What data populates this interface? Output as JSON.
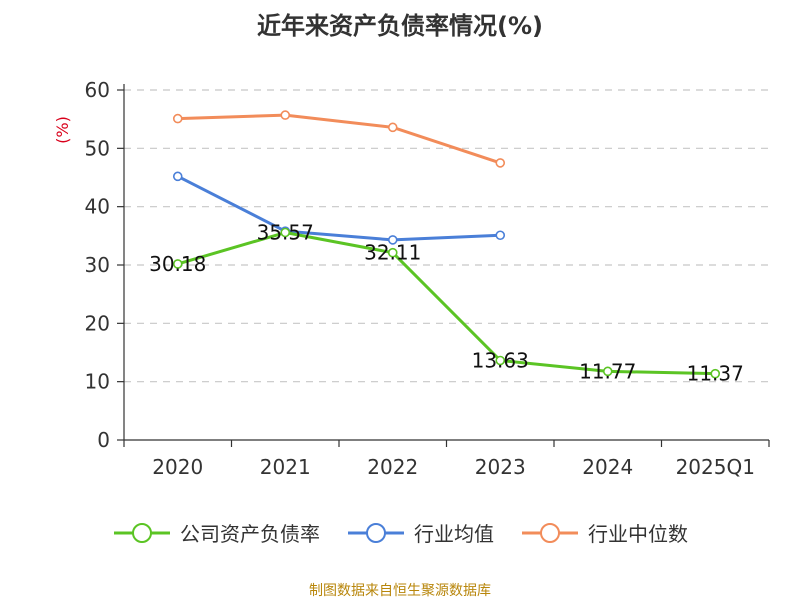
{
  "chart_data": {
    "type": "line",
    "title": "近年来资产负债率情况(%)",
    "ylabel": "(%)",
    "categories": [
      "2020",
      "2021",
      "2022",
      "2023",
      "2024",
      "2025Q1"
    ],
    "ylim": [
      0,
      60
    ],
    "yticks": [
      0,
      10,
      20,
      30,
      40,
      50,
      60
    ],
    "grid": true,
    "legend_position": "bottom",
    "series": [
      {
        "name": "公司资产负债率",
        "color": "#5bc424",
        "values": [
          30.18,
          35.57,
          32.11,
          13.63,
          11.77,
          11.37
        ],
        "data_labels": [
          "30.18",
          "35.57",
          "32.11",
          "13.63",
          "11.77",
          "11.37"
        ]
      },
      {
        "name": "行业均值",
        "color": "#4a7fd8",
        "values": [
          45.2,
          35.8,
          34.3,
          35.1,
          null,
          null
        ]
      },
      {
        "name": "行业中位数",
        "color": "#f28c5a",
        "values": [
          55.1,
          55.7,
          53.6,
          47.5,
          null,
          null
        ]
      }
    ]
  },
  "source": "制图数据来自恒生聚源数据库"
}
